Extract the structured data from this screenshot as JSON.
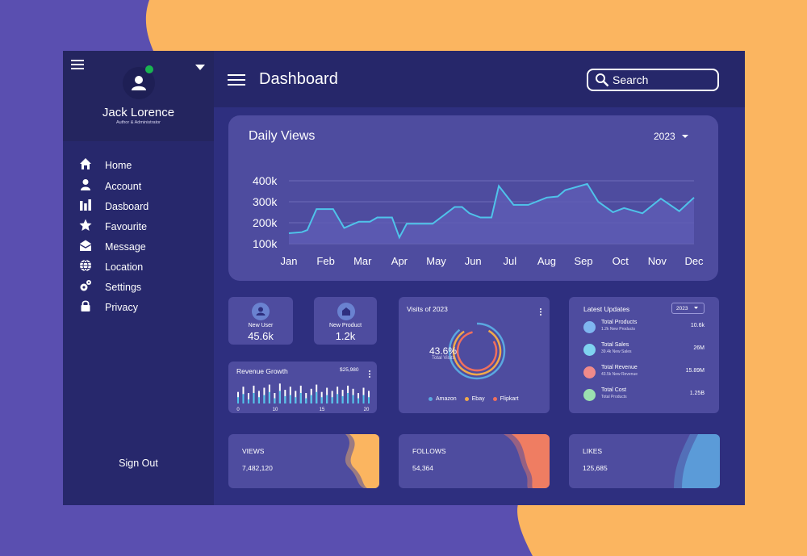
{
  "colors": {
    "accent_orange": "#fbb560",
    "accent_purple": "#5a4fb0",
    "line": "#4fc3ea",
    "amazon": "#5aa7e0",
    "ebay": "#f0a94a",
    "flipkart": "#ef6f5d"
  },
  "sidebar": {
    "user_name": "Jack Lorence",
    "user_role": "Author & Administrator",
    "items": [
      {
        "label": "Home",
        "icon": "home-icon"
      },
      {
        "label": "Account",
        "icon": "user-icon"
      },
      {
        "label": "Dasboard",
        "icon": "bar-chart-icon"
      },
      {
        "label": "Favourite",
        "icon": "star-icon"
      },
      {
        "label": "Message",
        "icon": "envelope-icon"
      },
      {
        "label": "Location",
        "icon": "globe-icon"
      },
      {
        "label": "Settings",
        "icon": "gear-icon"
      },
      {
        "label": "Privacy",
        "icon": "lock-icon"
      }
    ],
    "sign_out": "Sign Out"
  },
  "header": {
    "title": "Dashboard",
    "search_placeholder": "Search"
  },
  "daily_views": {
    "title": "Daily Views",
    "year": "2023",
    "chart_data": {
      "type": "area",
      "title": "Daily Views",
      "categories": [
        "Jan",
        "Feb",
        "Mar",
        "Apr",
        "May",
        "Jun",
        "Jul",
        "Aug",
        "Sep",
        "Oct",
        "Nov",
        "Dec"
      ],
      "y_ticks": [
        "400k",
        "300k",
        "200k",
        "100k"
      ],
      "ylim": [
        100000,
        400000
      ],
      "grid": true,
      "x": [
        0,
        0.35,
        0.5,
        0.75,
        1,
        1.2,
        1.5,
        1.7,
        1.9,
        2.2,
        2.4,
        2.6,
        2.8,
        3.0,
        3.2,
        3.5,
        3.9,
        4.2,
        4.5,
        4.7,
        4.9,
        5.2,
        5.5,
        5.7,
        6.1,
        6.3,
        6.5,
        7.0,
        7.3,
        7.5,
        8.1,
        8.4,
        8.8,
        9.1,
        9.6,
        10.1,
        10.6,
        11
      ]
    }
  },
  "daily_views_series": [
    150,
    155,
    165,
    265,
    265,
    265,
    175,
    190,
    205,
    205,
    225,
    225,
    225,
    130,
    195,
    195,
    195,
    235,
    275,
    275,
    245,
    225,
    225,
    375,
    285,
    285,
    285,
    320,
    325,
    355,
    385,
    300,
    250,
    270,
    245,
    315,
    255,
    320
  ],
  "stats": {
    "new_user": {
      "label": "New User",
      "value": "45.6k"
    },
    "new_product": {
      "label": "New Product",
      "value": "1.2k"
    }
  },
  "revenue": {
    "title": "Revenue Growth",
    "amount": "$25,980",
    "x_ticks": [
      "0",
      "10",
      "15",
      "20"
    ],
    "bars": [
      0.55,
      0.8,
      0.5,
      0.85,
      0.6,
      0.75,
      0.9,
      0.5,
      0.95,
      0.65,
      0.8,
      0.6,
      0.85,
      0.5,
      0.7,
      0.9,
      0.55,
      0.75,
      0.6,
      0.8,
      0.65,
      0.85,
      0.7,
      0.5,
      0.75,
      0.6
    ],
    "bar_fill": [
      0.3,
      0.45,
      0.2,
      0.5,
      0.3,
      0.4,
      0.55,
      0.25,
      0.6,
      0.35,
      0.4,
      0.3,
      0.5,
      0.25,
      0.4,
      0.55,
      0.3,
      0.4,
      0.3,
      0.45,
      0.35,
      0.5,
      0.4,
      0.25,
      0.4,
      0.3
    ]
  },
  "visits": {
    "title": "Visits of 2023",
    "percent": "43.6%",
    "caption": "Total Visits",
    "legend": [
      {
        "name": "Amazon",
        "color": "#5aa7e0"
      },
      {
        "name": "Ebay",
        "color": "#f0a94a"
      },
      {
        "name": "Flipkart",
        "color": "#ef6f5d"
      }
    ]
  },
  "updates": {
    "title": "Latest Updates",
    "year": "2023",
    "items": [
      {
        "title": "Total Products",
        "sub": "1.2k New Products",
        "value": "10.6k",
        "icon": "box-icon",
        "color": "#7fb6f0"
      },
      {
        "title": "Total Sales",
        "sub": "39.4k New Sales",
        "value": "26M",
        "icon": "trend-icon",
        "color": "#7fd3f0"
      },
      {
        "title": "Total Revenue",
        "sub": "43.5k New Revenue",
        "value": "15.89M",
        "icon": "wallet-icon",
        "color": "#f08a8a"
      },
      {
        "title": "Total Cost",
        "sub": "Total Products",
        "value": "1.25B",
        "icon": "dollar-icon",
        "color": "#9be0b0"
      }
    ]
  },
  "bottom_cards": [
    {
      "label": "VIEWS",
      "value": "7,482,120",
      "color": "#fbb560"
    },
    {
      "label": "FOLLOWS",
      "value": "54,364",
      "color": "#ef7d62"
    },
    {
      "label": "LIKES",
      "value": "125,685",
      "color": "#5b9bd8"
    }
  ]
}
